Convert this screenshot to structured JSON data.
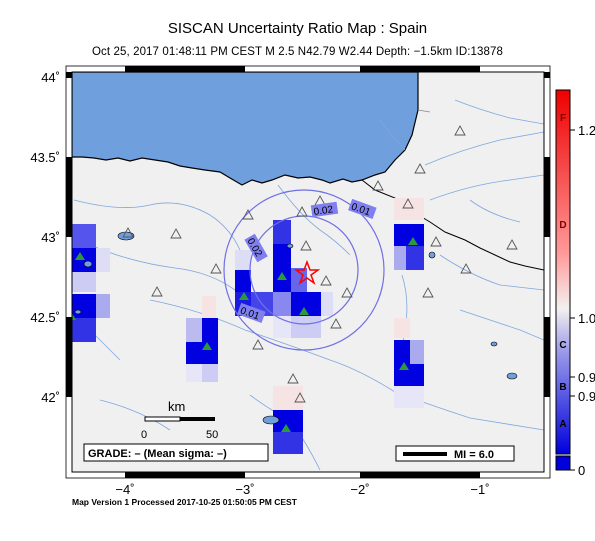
{
  "header": {
    "title": "SISCAN Uncertainty Ratio Map : Spain",
    "subtitle": "Oct 25, 2017 01:48:11 PM CEST   M 2.5   N42.79 W2.44   Depth: −1.5km   ID:13878"
  },
  "map": {
    "lat_labels": [
      "44˚",
      "43.5˚",
      "43˚",
      "42.5˚",
      "42˚"
    ],
    "lon_labels": [
      "−4˚",
      "−3˚",
      "−2˚",
      "−1˚"
    ],
    "contours": [
      "0.01",
      "0.02",
      "0.02",
      "0.01"
    ],
    "scale_bar": {
      "unit": "km",
      "tick_start": "0",
      "tick_end": "50"
    },
    "grade_label": "GRADE: – (Mean sigma: –)",
    "mi_label": "MI = 6.0",
    "epicenter_icon": "star-icon",
    "station_icon": "triangle-icon",
    "colors": {
      "sea": "#6f9fdc",
      "land": "#f0f0f0",
      "cell_high": "#0000e0",
      "epicenter": "#ff0000",
      "station": "#2a9a3a"
    }
  },
  "colorbar": {
    "letter_labels": [
      "F",
      "D",
      "C",
      "B",
      "A"
    ],
    "value_labels": [
      "1.2",
      "1.0",
      "0.9",
      "0.9",
      "0"
    ]
  },
  "footer": {
    "processed": "Map Version 1 Processed 2017-10-25 01:50:05 PM CEST"
  }
}
